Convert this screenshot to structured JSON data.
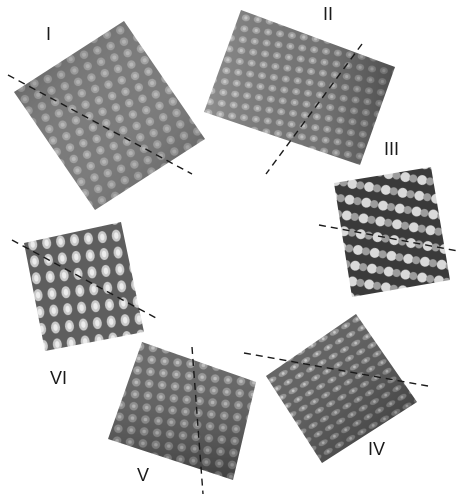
{
  "panels": [
    {
      "id": "I",
      "label": "I"
    },
    {
      "id": "II",
      "label": "II"
    },
    {
      "id": "III",
      "label": "III"
    },
    {
      "id": "IV",
      "label": "IV"
    },
    {
      "id": "V",
      "label": "V"
    },
    {
      "id": "VI",
      "label": "VI"
    }
  ]
}
